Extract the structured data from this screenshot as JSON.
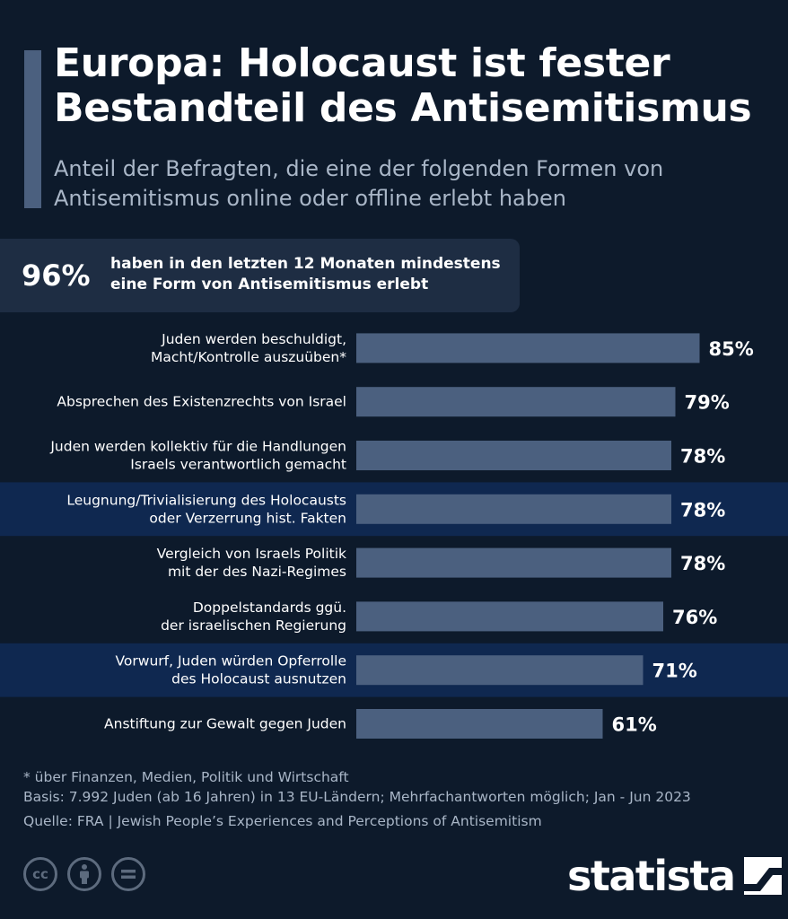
{
  "header": {
    "title": "Europa: Holocaust ist fester Bestandteil des Antisemitismus",
    "subtitle": "Anteil der Befragten, die eine der folgenden Formen von Antisemitismus online oder offline erlebt haben"
  },
  "highlight": {
    "value": "96%",
    "text": "haben in den letzten 12 Monaten mindestens eine Form von Antisemitismus erlebt"
  },
  "chart_data": {
    "type": "bar",
    "orientation": "horizontal",
    "title": "Europa: Holocaust ist fester Bestandteil des Antisemitismus",
    "subtitle": "Anteil der Befragten, die eine der folgenden Formen von Antisemitismus online oder offline erlebt haben",
    "unit": "%",
    "xlim": [
      0,
      100
    ],
    "grid": false,
    "legend": "none",
    "categories": [
      [
        "Juden werden beschuldigt,",
        "Macht/Kontrolle auszuüben*"
      ],
      [
        "Absprechen des Existenzrechts von Israel"
      ],
      [
        "Juden werden kollektiv für die Handlungen",
        "Israels verantwortlich gemacht"
      ],
      [
        "Leugnung/Trivialisierung des Holocausts",
        "oder Verzerrung hist. Fakten"
      ],
      [
        "Vergleich von Israels Politik",
        "mit der des Nazi-Regimes"
      ],
      [
        "Doppelstandards ggü.",
        "der israelischen Regierung"
      ],
      [
        "Vorwurf, Juden würden Opferrolle",
        "des Holocaust ausnutzen"
      ],
      [
        "Anstiftung zur Gewalt gegen Juden"
      ]
    ],
    "values": [
      85,
      79,
      78,
      78,
      78,
      76,
      71,
      61
    ],
    "value_labels": [
      "85%",
      "79%",
      "78%",
      "78%",
      "78%",
      "76%",
      "71%",
      "61%"
    ],
    "highlighted": [
      false,
      false,
      false,
      true,
      false,
      false,
      true,
      false
    ],
    "colors": {
      "background": "#0d1a2b",
      "bar": "#4b607f",
      "highlight_band": "#0f2850",
      "label_text": "#ffffff"
    }
  },
  "footer": {
    "note": "* über Finanzen, Medien, Politik und Wirtschaft",
    "basis": "Basis: 7.992 Juden (ab 16 Jahren) in 13 EU-Ländern; Mehrfachantworten möglich; Jan - Jun 2023",
    "source": "Quelle: FRA | Jewish People’s Experiences and Perceptions of Antisemitism"
  },
  "license_icons": [
    "cc-icon",
    "by-icon",
    "nd-icon"
  ],
  "brand": {
    "name": "statista"
  }
}
